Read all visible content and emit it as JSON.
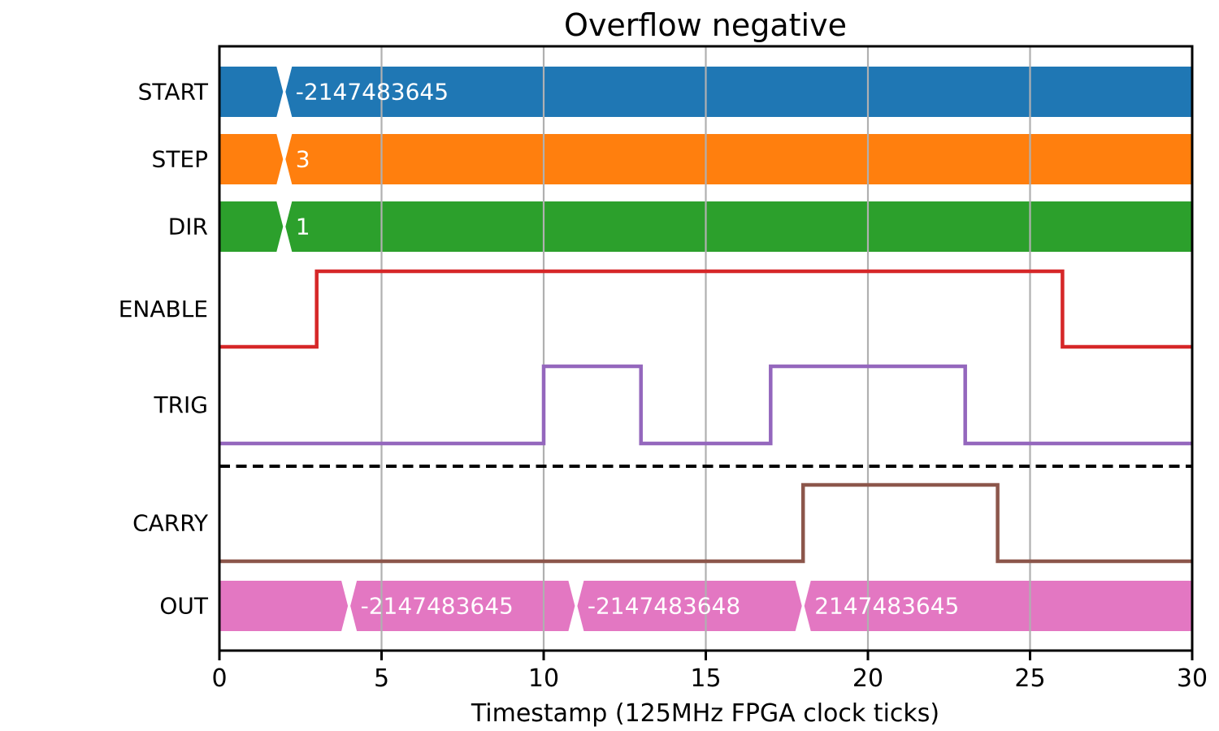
{
  "chart_data": {
    "type": "digital-timing",
    "title": "Overflow negative",
    "xlabel": "Timestamp (125MHz FPGA clock ticks)",
    "xlim": [
      0,
      30
    ],
    "xticks": [
      0,
      5,
      10,
      15,
      20,
      25,
      30
    ],
    "grid": true,
    "grid_color": "#b0b0b0",
    "axis_color": "#000000",
    "bus_label_color": "#ffffff",
    "signals": [
      {
        "name": "START",
        "kind": "bus",
        "color": "#1f77b4",
        "segments": [
          {
            "t0": 0,
            "t1": 2,
            "label": ""
          },
          {
            "t0": 2,
            "t1": 30,
            "label": "-2147483645"
          }
        ]
      },
      {
        "name": "STEP",
        "kind": "bus",
        "color": "#ff7f0e",
        "segments": [
          {
            "t0": 0,
            "t1": 2,
            "label": ""
          },
          {
            "t0": 2,
            "t1": 30,
            "label": "3"
          }
        ]
      },
      {
        "name": "DIR",
        "kind": "bus",
        "color": "#2ca02c",
        "segments": [
          {
            "t0": 0,
            "t1": 2,
            "label": ""
          },
          {
            "t0": 2,
            "t1": 30,
            "label": "1"
          }
        ]
      },
      {
        "name": "ENABLE",
        "kind": "logic",
        "color": "#d62728",
        "edges": [
          [
            0,
            0
          ],
          [
            3,
            1
          ],
          [
            26,
            0
          ]
        ]
      },
      {
        "name": "TRIG",
        "kind": "logic",
        "color": "#9467bd",
        "edges": [
          [
            0,
            0
          ],
          [
            10,
            1
          ],
          [
            13,
            0
          ],
          [
            17,
            1
          ],
          [
            23,
            0
          ]
        ]
      },
      {
        "name": "CARRY",
        "kind": "logic",
        "color": "#8c564b",
        "edges": [
          [
            0,
            0
          ],
          [
            18,
            1
          ],
          [
            24,
            0
          ]
        ]
      },
      {
        "name": "OUT",
        "kind": "bus",
        "color": "#e377c2",
        "segments": [
          {
            "t0": 0,
            "t1": 4,
            "label": ""
          },
          {
            "t0": 4,
            "t1": 11,
            "label": "-2147483645"
          },
          {
            "t0": 11,
            "t1": 18,
            "label": "-2147483648"
          },
          {
            "t0": 18,
            "t1": 30,
            "label": "2147483645"
          }
        ]
      }
    ],
    "separator": {
      "style": "dashed",
      "color": "#000000",
      "between": [
        "TRIG",
        "CARRY"
      ]
    }
  }
}
